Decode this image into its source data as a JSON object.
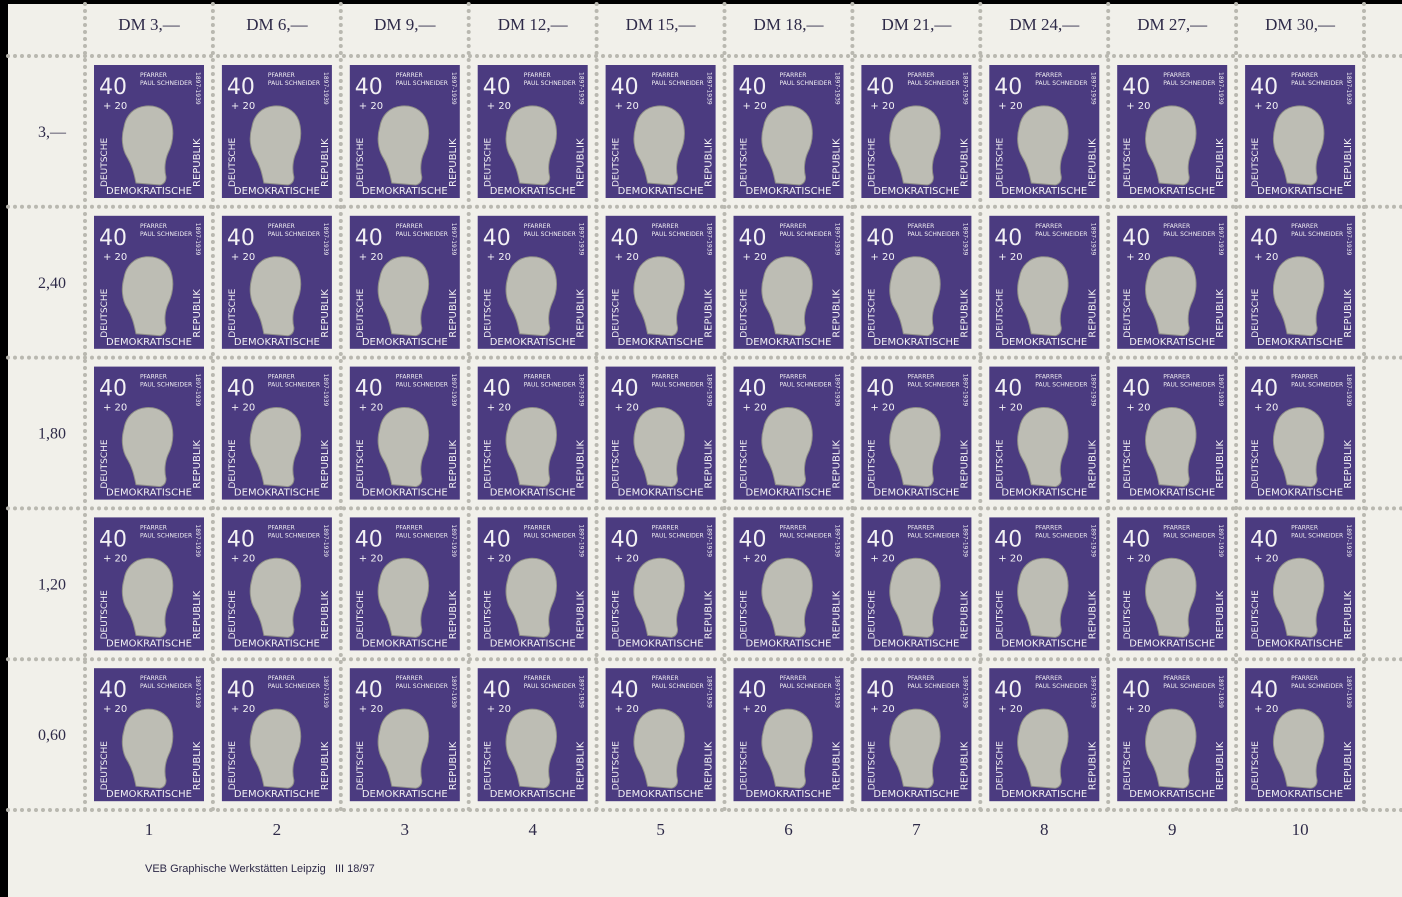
{
  "top_labels": [
    "DM 3,—",
    "DM 6,—",
    "DM 9,—",
    "DM 12,—",
    "DM 15,—",
    "DM 18,—",
    "DM 21,—",
    "DM 24,—",
    "DM 27,—",
    "DM 30,—"
  ],
  "left_labels": [
    "3,—",
    "2,40",
    "1,80",
    "1,20",
    "0,60"
  ],
  "bottom_labels": [
    "1",
    "2",
    "3",
    "4",
    "5",
    "6",
    "7",
    "8",
    "9",
    "10"
  ],
  "footer": "VEB Graphische Werkstätten Leipzig   III 18/97",
  "stamp": {
    "value": "40",
    "surcharge": "+ 20",
    "line1": "PFARRER",
    "line2": "PAUL SCHNEIDER",
    "years": "1897-1939",
    "left": "DEUTSCHE",
    "bottom": "DEMOKRATISCHE",
    "right": "REPUBLIK"
  }
}
